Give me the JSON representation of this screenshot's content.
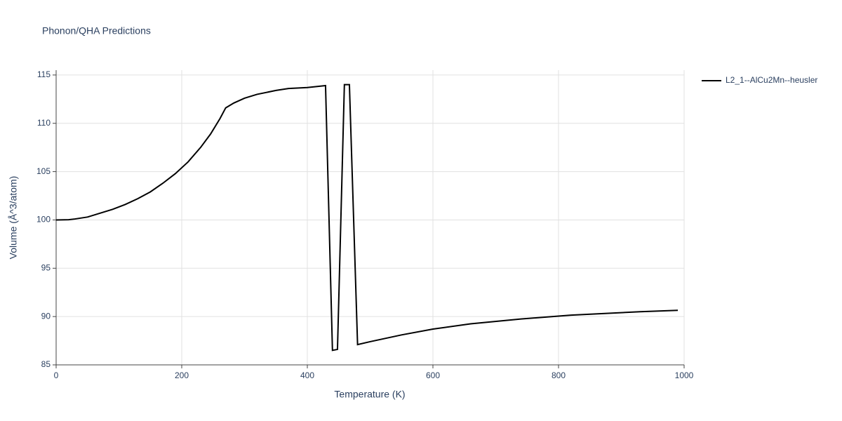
{
  "chart_data": {
    "type": "line",
    "title": "Phonon/QHA Predictions",
    "x_label": "Temperature (K)",
    "y_label": "Volume (Å^3/atom)",
    "xlim": [
      0,
      1000
    ],
    "xticks": [
      0,
      200,
      400,
      600,
      800,
      1000
    ],
    "ylim": [
      85,
      115.5
    ],
    "yticks": [
      85,
      90,
      95,
      100,
      105,
      110,
      115
    ],
    "grid": true,
    "legend": "right",
    "x": [
      0,
      20,
      30,
      50,
      70,
      90,
      110,
      130,
      150,
      170,
      190,
      210,
      230,
      246,
      261,
      270,
      283,
      300,
      320,
      350,
      370,
      400,
      429,
      440,
      448,
      459,
      467,
      480,
      500,
      550,
      600,
      660,
      740,
      820,
      930,
      990
    ],
    "series": [
      {
        "name": "L2_1--AlCu2Mn--heusler",
        "color": "#000000",
        "values": [
          100,
          100.02,
          100.1,
          100.3,
          100.7,
          101.1,
          101.6,
          102.2,
          102.9,
          103.8,
          104.8,
          106,
          107.5,
          108.9,
          110.5,
          111.6,
          112.1,
          112.6,
          113.0,
          113.4,
          113.6,
          113.7,
          113.9,
          86.5,
          86.6,
          114,
          114,
          87.1,
          87.4,
          88.1,
          88.7,
          89.25,
          89.75,
          90.15,
          90.5,
          90.65
        ]
      }
    ]
  }
}
